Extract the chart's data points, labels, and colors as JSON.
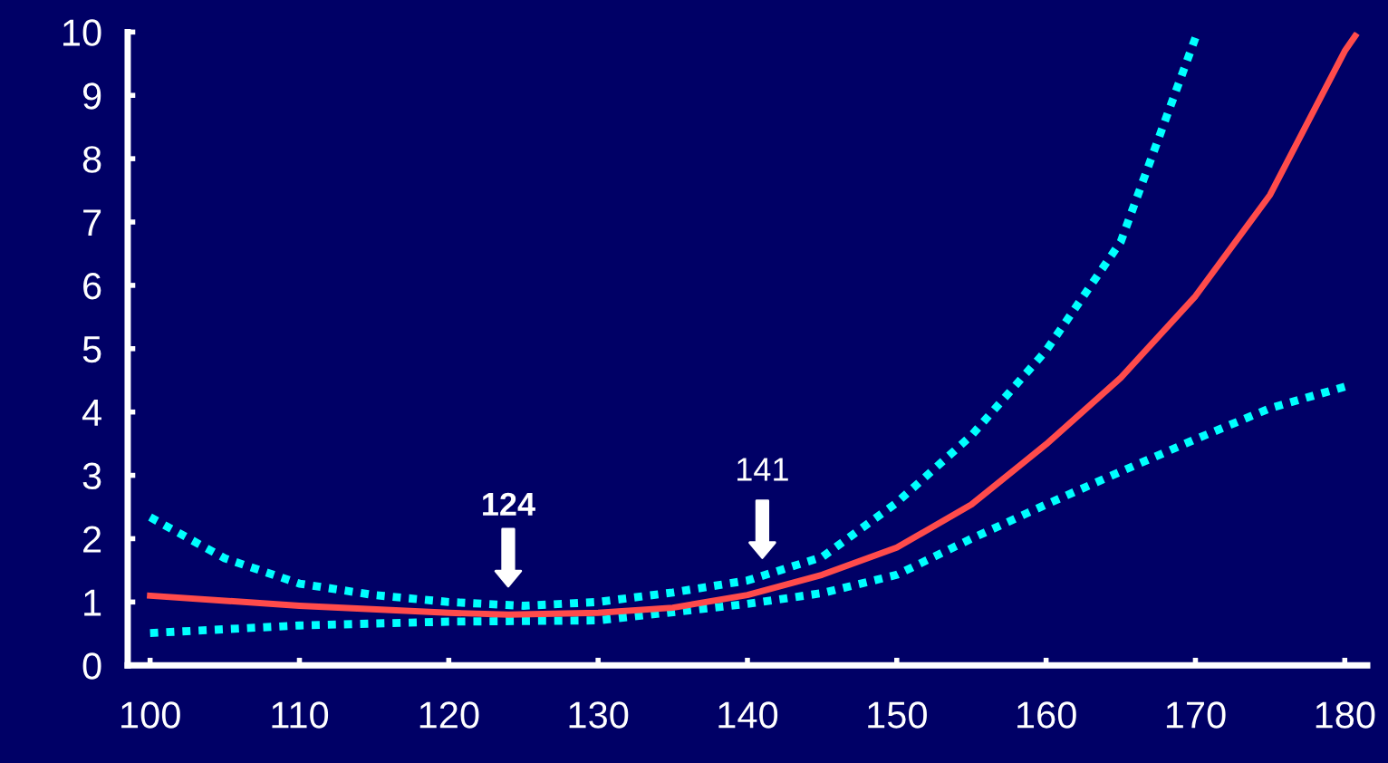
{
  "chart_data": {
    "type": "line",
    "xlim": [
      98.5,
      181.5
    ],
    "ylim": [
      0,
      10
    ],
    "xticks": [
      100,
      110,
      120,
      130,
      140,
      150,
      160,
      170,
      180
    ],
    "yticks": [
      0,
      1,
      2,
      3,
      4,
      5,
      6,
      7,
      8,
      9,
      10
    ],
    "grid": false,
    "legend": false,
    "series": [
      {
        "color": "#00ffff",
        "line_style": "dotted",
        "x": [
          100,
          105,
          110,
          115,
          120,
          125,
          130,
          135,
          140,
          145,
          150,
          155,
          160,
          165,
          170
        ],
        "values": [
          2.34,
          1.69,
          1.29,
          1.11,
          1.0,
          0.94,
          1.0,
          1.15,
          1.34,
          1.71,
          2.57,
          3.63,
          4.97,
          6.69,
          9.91
        ]
      },
      {
        "color": "#00ffff",
        "line_style": "dotted",
        "x": [
          100,
          110,
          120,
          130,
          140,
          145,
          150,
          155,
          160,
          165,
          170,
          175,
          180
        ],
        "values": [
          0.51,
          0.63,
          0.69,
          0.71,
          0.97,
          1.14,
          1.43,
          2.0,
          2.54,
          3.06,
          3.57,
          4.06,
          4.4
        ]
      },
      {
        "color": "#ff4b4b",
        "line_style": "solid",
        "x": [
          100,
          110,
          120,
          124,
          130,
          135,
          140,
          145,
          150,
          155,
          160,
          165,
          170,
          175,
          180,
          180.7
        ],
        "values": [
          1.1,
          0.94,
          0.83,
          0.8,
          0.83,
          0.91,
          1.11,
          1.43,
          1.86,
          2.54,
          3.49,
          4.54,
          5.83,
          7.43,
          9.7,
          9.94
        ]
      }
    ],
    "annotations": [
      "124",
      "141"
    ]
  }
}
